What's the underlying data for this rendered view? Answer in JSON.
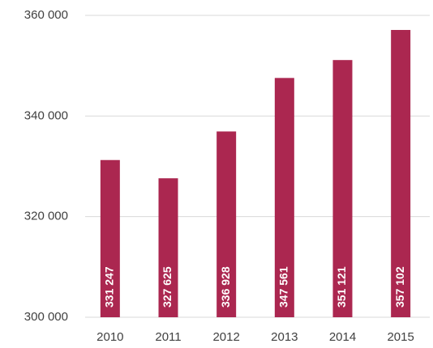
{
  "chart_data": {
    "type": "bar",
    "categories": [
      "2010",
      "2011",
      "2012",
      "2013",
      "2014",
      "2015"
    ],
    "values": [
      331247,
      327625,
      336928,
      347561,
      351121,
      357102
    ],
    "value_labels": [
      "331 247",
      "327 625",
      "336 928",
      "347 561",
      "351 121",
      "357 102"
    ],
    "color": "#ab2750",
    "ylim": [
      300000,
      360000
    ],
    "yticks": [
      {
        "value": 300000,
        "label": "300 000"
      },
      {
        "value": 320000,
        "label": "320 000"
      },
      {
        "value": 340000,
        "label": "340 000"
      },
      {
        "value": 360000,
        "label": "360 000"
      }
    ],
    "grid": true
  }
}
